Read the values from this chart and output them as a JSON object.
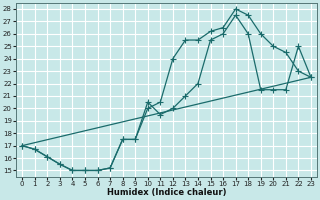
{
  "xlabel": "Humidex (Indice chaleur)",
  "bg_color": "#c8e8e8",
  "grid_color": "#aacccc",
  "line_color": "#1a6b6b",
  "xlim": [
    -0.5,
    23.5
  ],
  "ylim": [
    14.5,
    28.5
  ],
  "xticks": [
    0,
    1,
    2,
    3,
    4,
    5,
    6,
    7,
    8,
    9,
    10,
    11,
    12,
    13,
    14,
    15,
    16,
    17,
    18,
    19,
    20,
    21,
    22,
    23
  ],
  "yticks": [
    15,
    16,
    17,
    18,
    19,
    20,
    21,
    22,
    23,
    24,
    25,
    26,
    27,
    28
  ],
  "line1_x": [
    0,
    1,
    2,
    3,
    4,
    5,
    6,
    7,
    8,
    9,
    10,
    11,
    12,
    13,
    14,
    15,
    16,
    17,
    18,
    19,
    20,
    21,
    22,
    23
  ],
  "line1_y": [
    17.0,
    16.7,
    16.1,
    15.5,
    15.0,
    15.0,
    15.0,
    15.2,
    17.5,
    17.5,
    20.5,
    19.5,
    20.0,
    21.0,
    22.0,
    25.5,
    26.0,
    27.5,
    26.0,
    21.5,
    21.5,
    21.5,
    25.0,
    22.5
  ],
  "line2_x": [
    0,
    1,
    2,
    3,
    4,
    5,
    6,
    7,
    8,
    9,
    10,
    11,
    12,
    13,
    14,
    15,
    16,
    17,
    18,
    19,
    20,
    21,
    22,
    23
  ],
  "line2_y": [
    17.0,
    16.7,
    16.1,
    15.5,
    15.0,
    15.0,
    15.0,
    15.2,
    17.5,
    17.5,
    20.0,
    20.5,
    24.0,
    25.5,
    25.5,
    26.2,
    26.5,
    28.0,
    27.5,
    26.0,
    25.0,
    24.5,
    23.0,
    22.5
  ],
  "line3_x": [
    0,
    23
  ],
  "line3_y": [
    17.0,
    22.5
  ]
}
